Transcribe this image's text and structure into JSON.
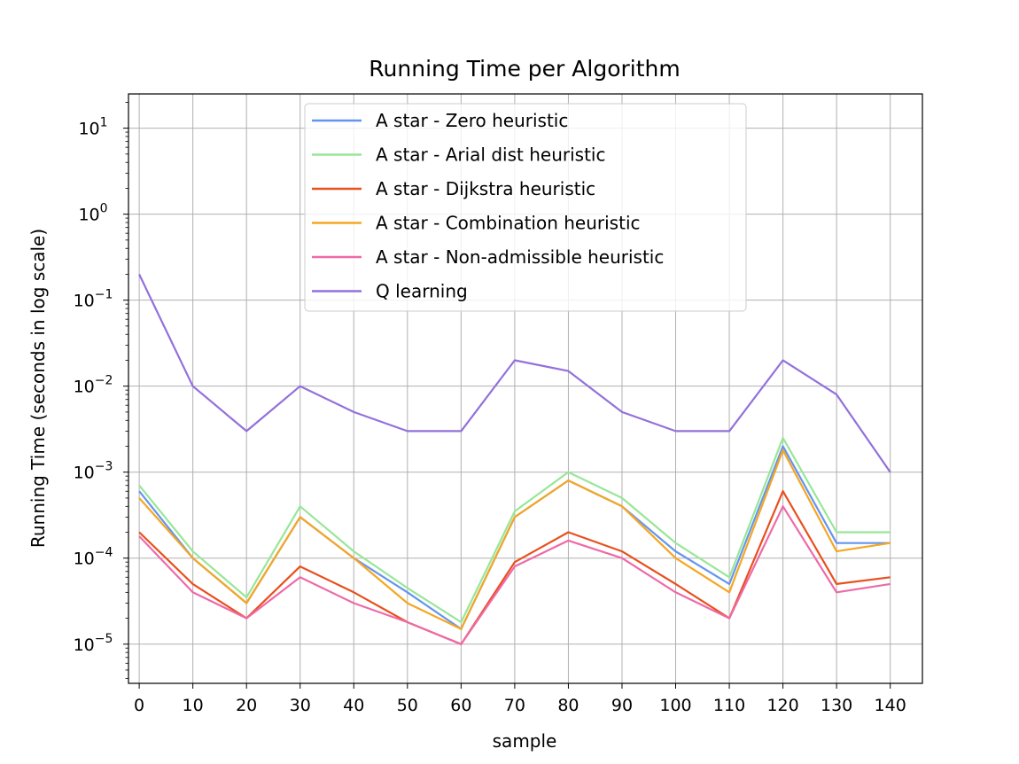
{
  "chart_data": {
    "type": "line",
    "title": "Running Time per Algorithm",
    "xlabel": "sample",
    "ylabel": "Running Time (seconds in log scale)",
    "yscale": "log",
    "xlim": [
      -2,
      146
    ],
    "ylim": [
      3.5e-06,
      25
    ],
    "x_ticks": [
      0,
      10,
      20,
      30,
      40,
      50,
      60,
      70,
      80,
      90,
      100,
      110,
      120,
      130,
      140
    ],
    "y_ticks": [
      {
        "exp": "-5",
        "value": 1e-05
      },
      {
        "exp": "-4",
        "value": 0.0001
      },
      {
        "exp": "-3",
        "value": 0.001
      },
      {
        "exp": "-2",
        "value": 0.01
      },
      {
        "exp": "-1",
        "value": 0.1
      },
      {
        "exp": "0",
        "value": 1
      },
      {
        "exp": "1",
        "value": 10
      }
    ],
    "y_tick_base": "10",
    "grid": true,
    "legend_position": "top-center",
    "x": [
      0,
      10,
      20,
      30,
      40,
      50,
      60,
      70,
      80,
      90,
      100,
      110,
      120,
      130,
      140
    ],
    "series": [
      {
        "name": "A star - Zero heuristic",
        "color": "#6495ed",
        "values": [
          0.0006,
          0.0001,
          3e-05,
          0.0003,
          0.0001,
          4e-05,
          1.5e-05,
          0.0003,
          0.0008,
          0.0004,
          0.00012,
          5e-05,
          0.002,
          0.00015,
          0.00015
        ]
      },
      {
        "name": "A star - Arial dist heuristic",
        "color": "#98e698",
        "values": [
          0.0007,
          0.00012,
          3.5e-05,
          0.0004,
          0.00012,
          4.5e-05,
          1.8e-05,
          0.00035,
          0.001,
          0.0005,
          0.00015,
          6e-05,
          0.0025,
          0.0002,
          0.0002
        ]
      },
      {
        "name": "A star - Dijkstra heuristic",
        "color": "#e8501e",
        "values": [
          0.0002,
          5e-05,
          2e-05,
          8e-05,
          4e-05,
          1.8e-05,
          1e-05,
          9e-05,
          0.0002,
          0.00012,
          5e-05,
          2e-05,
          0.0006,
          5e-05,
          6e-05
        ]
      },
      {
        "name": "A star - Combination heuristic",
        "color": "#f5a623",
        "values": [
          0.0005,
          0.0001,
          3e-05,
          0.0003,
          0.0001,
          3e-05,
          1.5e-05,
          0.0003,
          0.0008,
          0.0004,
          0.0001,
          4e-05,
          0.0018,
          0.00012,
          0.00015
        ]
      },
      {
        "name": "A star - Non-admissible heuristic",
        "color": "#ee6aa7",
        "values": [
          0.00018,
          4e-05,
          2e-05,
          6e-05,
          3e-05,
          1.8e-05,
          1e-05,
          8e-05,
          0.00016,
          0.0001,
          4e-05,
          2e-05,
          0.0004,
          4e-05,
          5e-05
        ]
      },
      {
        "name": "Q learning",
        "color": "#9370db",
        "values": [
          0.2,
          0.01,
          0.003,
          0.01,
          0.005,
          0.003,
          0.003,
          0.02,
          0.015,
          0.005,
          0.003,
          0.003,
          0.02,
          0.008,
          0.001
        ]
      }
    ]
  }
}
